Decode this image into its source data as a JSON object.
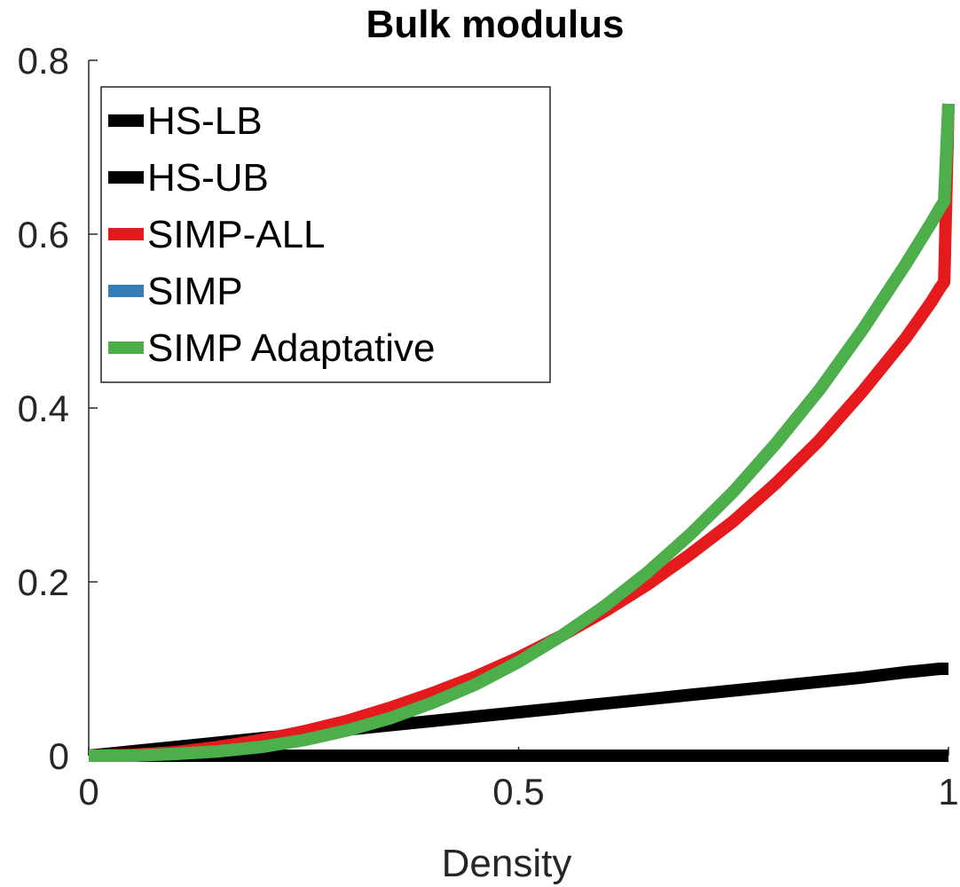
{
  "chart_data": {
    "type": "line",
    "title": "Bulk modulus",
    "xlabel": "Density",
    "ylabel": "",
    "xlim": [
      0,
      1
    ],
    "ylim": [
      0,
      0.8
    ],
    "xticks": [
      "0",
      "0.5",
      "1"
    ],
    "yticks": [
      "0",
      "0.2",
      "0.4",
      "0.6",
      "0.8"
    ],
    "grid": false,
    "legend_position": "top-left",
    "x": [
      0,
      0.05,
      0.1,
      0.15,
      0.2,
      0.25,
      0.3,
      0.35,
      0.4,
      0.45,
      0.5,
      0.55,
      0.6,
      0.65,
      0.7,
      0.75,
      0.8,
      0.85,
      0.9,
      0.95,
      0.97,
      0.98,
      0.99,
      0.995,
      1
    ],
    "series": [
      {
        "name": "HS-LB",
        "color": "#000000",
        "values": [
          0,
          0.005,
          0.01,
          0.015,
          0.02,
          0.025,
          0.03,
          0.035,
          0.04,
          0.045,
          0.05,
          0.055,
          0.06,
          0.065,
          0.07,
          0.075,
          0.08,
          0.085,
          0.09,
          0.096,
          0.098,
          0.099,
          0.1,
          0.1,
          0.1
        ]
      },
      {
        "name": "HS-UB",
        "color": "#000000",
        "values": [
          0,
          0,
          0,
          0,
          0,
          0,
          0,
          0,
          0,
          0,
          0,
          0,
          0,
          0,
          0,
          0,
          0,
          0,
          0,
          0,
          0,
          0,
          0,
          0,
          0
        ]
      },
      {
        "name": "SIMP-ALL",
        "color": "#e41a1c",
        "values": [
          0,
          0.001,
          0.004,
          0.01,
          0.018,
          0.028,
          0.04,
          0.055,
          0.072,
          0.091,
          0.113,
          0.138,
          0.166,
          0.197,
          0.232,
          0.27,
          0.314,
          0.363,
          0.419,
          0.48,
          0.508,
          0.522,
          0.538,
          0.545,
          0.75
        ]
      },
      {
        "name": "SIMP",
        "color": "#377eb8",
        "values": [
          0,
          0,
          0.002,
          0.005,
          0.01,
          0.018,
          0.029,
          0.043,
          0.061,
          0.082,
          0.108,
          0.138,
          0.172,
          0.211,
          0.255,
          0.304,
          0.36,
          0.421,
          0.49,
          0.565,
          0.597,
          0.613,
          0.63,
          0.638,
          0.75
        ]
      },
      {
        "name": "SIMP Adaptative",
        "color": "#4daf4a",
        "values": [
          0,
          0,
          0.002,
          0.005,
          0.01,
          0.018,
          0.029,
          0.043,
          0.061,
          0.082,
          0.108,
          0.138,
          0.172,
          0.211,
          0.255,
          0.304,
          0.36,
          0.421,
          0.49,
          0.565,
          0.597,
          0.613,
          0.63,
          0.638,
          0.75
        ]
      }
    ]
  }
}
